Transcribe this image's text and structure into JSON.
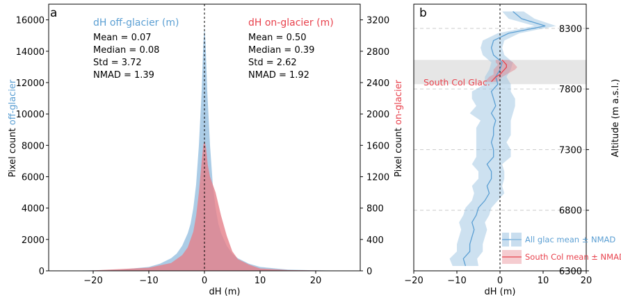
{
  "colors": {
    "off_glacier": "#5b9fd3",
    "off_glacier_fill": "#9cc3e2",
    "on_glacier": "#e8424d",
    "on_glacier_fill": "#e58089",
    "south_col_band": "#e6e6e6",
    "axis": "#000000",
    "grid": "#cccccc"
  },
  "chart_data": [
    {
      "type": "area",
      "panel_label": "a",
      "xlabel": "dH (m)",
      "ylabel_left": {
        "prefix": "Pixel count ",
        "highlight": "off-glacier"
      },
      "ylabel_right": {
        "prefix": "Pixel count ",
        "highlight": "on-glacier"
      },
      "xlim": [
        -28,
        28
      ],
      "ylim_left": [
        0,
        17000
      ],
      "ylim_right": [
        0,
        3400
      ],
      "x_ticks": [
        -20,
        -10,
        0,
        10,
        20
      ],
      "x_tick_labels": [
        "−20",
        "−10",
        "0",
        "10",
        "20"
      ],
      "y_ticks_left": [
        0,
        2000,
        4000,
        6000,
        8000,
        10000,
        12000,
        14000,
        16000
      ],
      "y_ticks_right": [
        0,
        400,
        800,
        1200,
        1600,
        2000,
        2400,
        2800,
        3200
      ],
      "vline_x": 0,
      "series": [
        {
          "name": "dH off-glacier (m)",
          "axis": "left",
          "x": [
            -28,
            -20,
            -15,
            -10,
            -8,
            -6,
            -5,
            -4,
            -3,
            -2.5,
            -2,
            -1.5,
            -1,
            -0.5,
            -0.2,
            0,
            0.2,
            0.5,
            1,
            1.5,
            2,
            2.5,
            3,
            4,
            5,
            6,
            8,
            10,
            15,
            20,
            28
          ],
          "values": [
            0,
            30,
            80,
            250,
            450,
            800,
            1100,
            1600,
            2400,
            3000,
            4000,
            5500,
            8000,
            11500,
            14500,
            15600,
            14500,
            11500,
            8000,
            5500,
            4000,
            3000,
            2400,
            1600,
            1100,
            800,
            450,
            250,
            80,
            30,
            0
          ]
        },
        {
          "name": "dH on-glacier (m)",
          "axis": "right",
          "x": [
            -28,
            -20,
            -10,
            -6,
            -4,
            -3,
            -2,
            -1.5,
            -1,
            -0.5,
            -0.2,
            0,
            0.3,
            0.6,
            1,
            1.5,
            2,
            2.5,
            3,
            4,
            5,
            6,
            8,
            10,
            15,
            20,
            28
          ],
          "values": [
            0,
            5,
            40,
            100,
            200,
            300,
            500,
            700,
            1000,
            1400,
            1600,
            1660,
            1560,
            1350,
            1200,
            1100,
            1000,
            850,
            700,
            450,
            250,
            150,
            80,
            30,
            10,
            5,
            0
          ]
        }
      ],
      "stats": {
        "off": {
          "title": "dH off-glacier (m)",
          "lines": [
            "Mean = 0.07",
            "Median = 0.08",
            "Std = 3.72",
            "NMAD = 1.39"
          ]
        },
        "on": {
          "title": "dH on-glacier (m)",
          "lines": [
            "Mean = 0.50",
            "Median = 0.39",
            "Std = 2.62",
            "NMAD = 1.92"
          ]
        }
      }
    },
    {
      "type": "line",
      "panel_label": "b",
      "xlabel": "dH (m)",
      "ylabel": "Altitude (m a.s.l.)",
      "xlim": [
        -20,
        20
      ],
      "ylim": [
        6300,
        8500
      ],
      "x_ticks": [
        -20,
        -10,
        0,
        10,
        20
      ],
      "x_tick_labels": [
        "−20",
        "−10",
        "0",
        "10",
        "20"
      ],
      "y_ticks": [
        6300,
        6800,
        7300,
        7800,
        8300
      ],
      "grid_y": true,
      "vline_x": 0,
      "band": {
        "label": "South Col Glac.",
        "y0": 7840,
        "y1": 8040
      },
      "series": [
        {
          "name": "All glac mean ± NMAD",
          "altitude": [
            6340,
            6400,
            6460,
            6520,
            6580,
            6640,
            6700,
            6760,
            6820,
            6880,
            6940,
            7000,
            7060,
            7120,
            7180,
            7240,
            7300,
            7360,
            7420,
            7480,
            7540,
            7600,
            7660,
            7720,
            7780,
            7840,
            7900,
            7960,
            8020,
            8080,
            8140,
            8200,
            8260,
            8320,
            8380,
            8440
          ],
          "mean": [
            -8,
            -8.5,
            -7,
            -7,
            -6.5,
            -6,
            -6.5,
            -5.5,
            -5,
            -3.5,
            -2.5,
            -3,
            -2,
            -2,
            -3,
            -1.5,
            -1.5,
            -2,
            -1.5,
            -1.5,
            -1,
            -2,
            -1,
            -1.5,
            -2,
            -0.5,
            -1,
            0,
            0.5,
            -1.5,
            -2,
            -1.5,
            2,
            10.5,
            5,
            3
          ],
          "nmad": [
            3,
            3.2,
            3,
            3,
            3,
            3,
            3,
            3,
            3,
            3,
            3.5,
            3.5,
            3,
            3,
            3.5,
            4,
            4,
            3.5,
            4,
            4,
            3.5,
            5,
            4.5,
            5,
            4.5,
            3,
            2.5,
            2.5,
            2.5,
            2.5,
            2.5,
            2.5,
            2.5,
            2.5,
            3,
            2.5
          ]
        },
        {
          "name": "South Col mean ± NMAD",
          "altitude": [
            7860,
            7880,
            7900,
            7920,
            7940,
            7960,
            7980,
            8000,
            8020,
            8040
          ],
          "mean": [
            -2,
            -1.5,
            -1,
            0,
            0.5,
            1,
            1.5,
            1.5,
            1,
            0.5
          ],
          "nmad": [
            1.5,
            1.5,
            1.5,
            1.5,
            2,
            2.5,
            2.5,
            2,
            2,
            1.5
          ]
        }
      ],
      "legend": {
        "placement": "bottom-right"
      }
    }
  ]
}
